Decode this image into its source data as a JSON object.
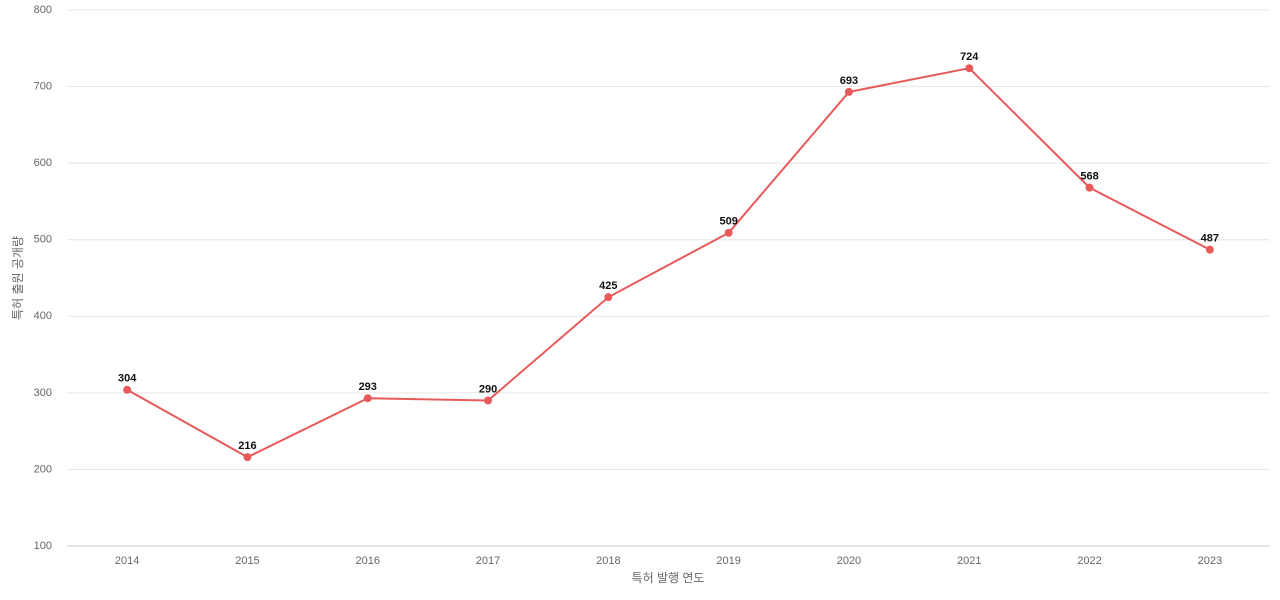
{
  "chart_data": {
    "type": "line",
    "x_label": "특허 발행 연도",
    "y_label": "특허 출원 공개량",
    "categories": [
      "2014",
      "2015",
      "2016",
      "2017",
      "2018",
      "2019",
      "2020",
      "2021",
      "2022",
      "2023"
    ],
    "values": [
      304,
      216,
      293,
      290,
      425,
      509,
      693,
      724,
      568,
      487
    ],
    "color": "#e85a5a",
    "ylim": [
      100,
      800
    ],
    "yticks": [
      100,
      200,
      300,
      400,
      500,
      600,
      700,
      800
    ],
    "grid": true
  }
}
